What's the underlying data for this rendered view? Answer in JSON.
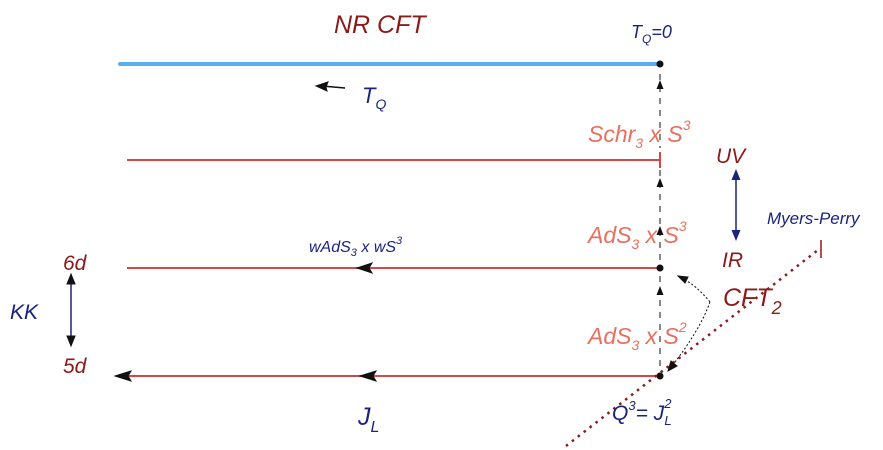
{
  "colors": {
    "line_red": "#d04848",
    "salmon": "#e8705e",
    "dark_red": "#8b1a1a",
    "navy": "#1a237e",
    "blue_glow": "#3fa2ee",
    "black": "#111111"
  },
  "title": "NR CFT",
  "tq_zero": {
    "base": "T",
    "sub": "Q",
    "rest": "=0"
  },
  "tq_flow": {
    "base": "T",
    "sub": "Q"
  },
  "levels": {
    "schr": {
      "base": "Schr",
      "sub": "3",
      "mid": " x S",
      "sup": "3"
    },
    "ads3s3": {
      "base": "AdS",
      "sub": "3",
      "mid": " x S",
      "sup": "3"
    },
    "ads3s2": {
      "base": "AdS",
      "sub": "3",
      "mid": " x S",
      "sup": "2"
    },
    "wads": {
      "base": "wAdS",
      "sub": "3",
      "mid": " x wS",
      "sup": "3"
    }
  },
  "uv": "UV",
  "ir": "IR",
  "six_d": "6d",
  "five_d": "5d",
  "kk": "KK",
  "cft2": {
    "base": "CFT",
    "sub": "2"
  },
  "myers_perry": "Myers-Perry",
  "jl": {
    "base": "J",
    "sub": "L"
  },
  "charge_eq": {
    "q": "Q",
    "qsup": "3",
    "eq": "= J",
    "jsup": "2",
    "jsub": "L"
  }
}
